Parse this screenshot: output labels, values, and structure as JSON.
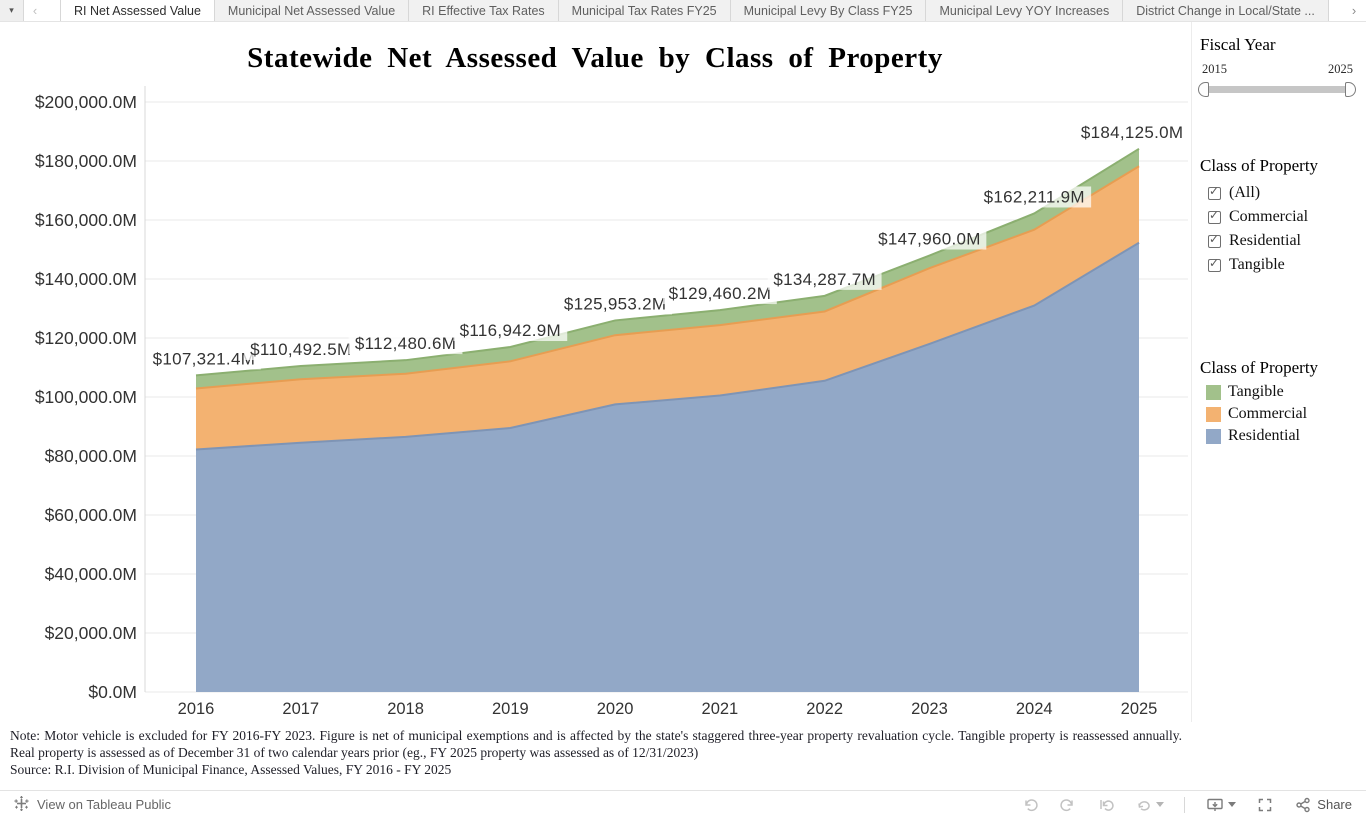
{
  "tab_bar": {
    "tabs": [
      {
        "label": "RI Net Assessed Value",
        "active": true
      },
      {
        "label": "Municipal Net Assessed Value",
        "active": false
      },
      {
        "label": "RI Effective Tax Rates",
        "active": false
      },
      {
        "label": "Municipal Tax Rates FY25",
        "active": false
      },
      {
        "label": "Municipal Levy By Class FY25",
        "active": false
      },
      {
        "label": "Municipal Levy YOY Increases",
        "active": false
      },
      {
        "label": "District Change in Local/State ...",
        "active": false
      }
    ]
  },
  "chart": {
    "title": "Statewide Net Assessed Value by Class of Property"
  },
  "chart_data": {
    "type": "area",
    "stacked": true,
    "title": "Statewide Net Assessed Value by Class of Property",
    "x": [
      2016,
      2017,
      2018,
      2019,
      2020,
      2021,
      2022,
      2023,
      2024,
      2025
    ],
    "x_tick_labels": [
      "2016",
      "2017",
      "2018",
      "2019",
      "2020",
      "2021",
      "2022",
      "2023",
      "2024",
      "2025"
    ],
    "series": [
      {
        "name": "Residential",
        "color": "#92a8c7",
        "edge_color": "#7e94b5",
        "values": [
          82200,
          84500,
          86500,
          89500,
          97500,
          100500,
          105500,
          118000,
          131000,
          152300
        ]
      },
      {
        "name": "Commercial",
        "color": "#f3b271",
        "edge_color": "#e79d52",
        "values": [
          20700,
          21500,
          21400,
          22600,
          23450,
          23860,
          23490,
          25660,
          25710,
          25925
        ]
      },
      {
        "name": "Tangible",
        "color": "#a2c18b",
        "edge_color": "#8baf70",
        "values": [
          4421.4,
          4492.5,
          4580.6,
          4842.9,
          5003.2,
          5100.2,
          5297.7,
          4300.0,
          5501.9,
          5900.0
        ]
      }
    ],
    "totals": [
      107321.4,
      110492.5,
      112480.6,
      116942.9,
      125953.2,
      129460.2,
      134287.7,
      147960.0,
      162211.9,
      184125.0
    ],
    "total_labels": [
      "$107,321.4M",
      "$110,492.5M",
      "$112,480.6M",
      "$116,942.9M",
      "$125,953.2M",
      "$129,460.2M",
      "$134,287.7M",
      "$147,960.0M",
      "$162,211.9M",
      "$184,125.0M"
    ],
    "ylim": [
      0,
      200000
    ],
    "y_tick_values": [
      0,
      20000,
      40000,
      60000,
      80000,
      100000,
      120000,
      140000,
      160000,
      180000,
      200000
    ],
    "y_tick_labels": [
      "$0.0M",
      "$20,000.0M",
      "$40,000.0M",
      "$60,000.0M",
      "$80,000.0M",
      "$100,000.0M",
      "$120,000.0M",
      "$140,000.0M",
      "$160,000.0M",
      "$180,000.0M",
      "$200,000.0M"
    ],
    "grid": true,
    "legend_position": "right"
  },
  "sidebar": {
    "fiscal_year": {
      "title": "Fiscal Year",
      "min": "2015",
      "max": "2025"
    },
    "filter": {
      "title": "Class of Property",
      "items": [
        {
          "label": "(All)",
          "checked": true
        },
        {
          "label": "Commercial",
          "checked": true
        },
        {
          "label": "Residential",
          "checked": true
        },
        {
          "label": "Tangible",
          "checked": true
        }
      ]
    },
    "legend": {
      "title": "Class of Property",
      "items": [
        {
          "label": "Tangible",
          "color": "#a2c18b"
        },
        {
          "label": "Commercial",
          "color": "#f3b271"
        },
        {
          "label": "Residential",
          "color": "#92a8c7"
        }
      ]
    }
  },
  "notes": {
    "note_line": "Note: Motor vehicle is excluded for FY 2016-FY 2023. Figure is net of municipal exemptions and is affected by the state's staggered three-year property revaluation cycle. Tangible property is reassessed annually. Real property is assessed as of December 31 of two calendar years prior (eg., FY 2025 property was assessed as of 12/31/2023)",
    "source_line": "Source: R.I. Division of Municipal Finance, Assessed Values, FY 2016 - FY 2025"
  },
  "footer": {
    "view_on": "View on Tableau Public",
    "share": "Share",
    "icons": [
      "tableau-logo-icon",
      "undo-icon",
      "redo-icon",
      "reset-icon",
      "refresh-icon",
      "download-icon",
      "fullscreen-icon",
      "share-icon"
    ]
  }
}
